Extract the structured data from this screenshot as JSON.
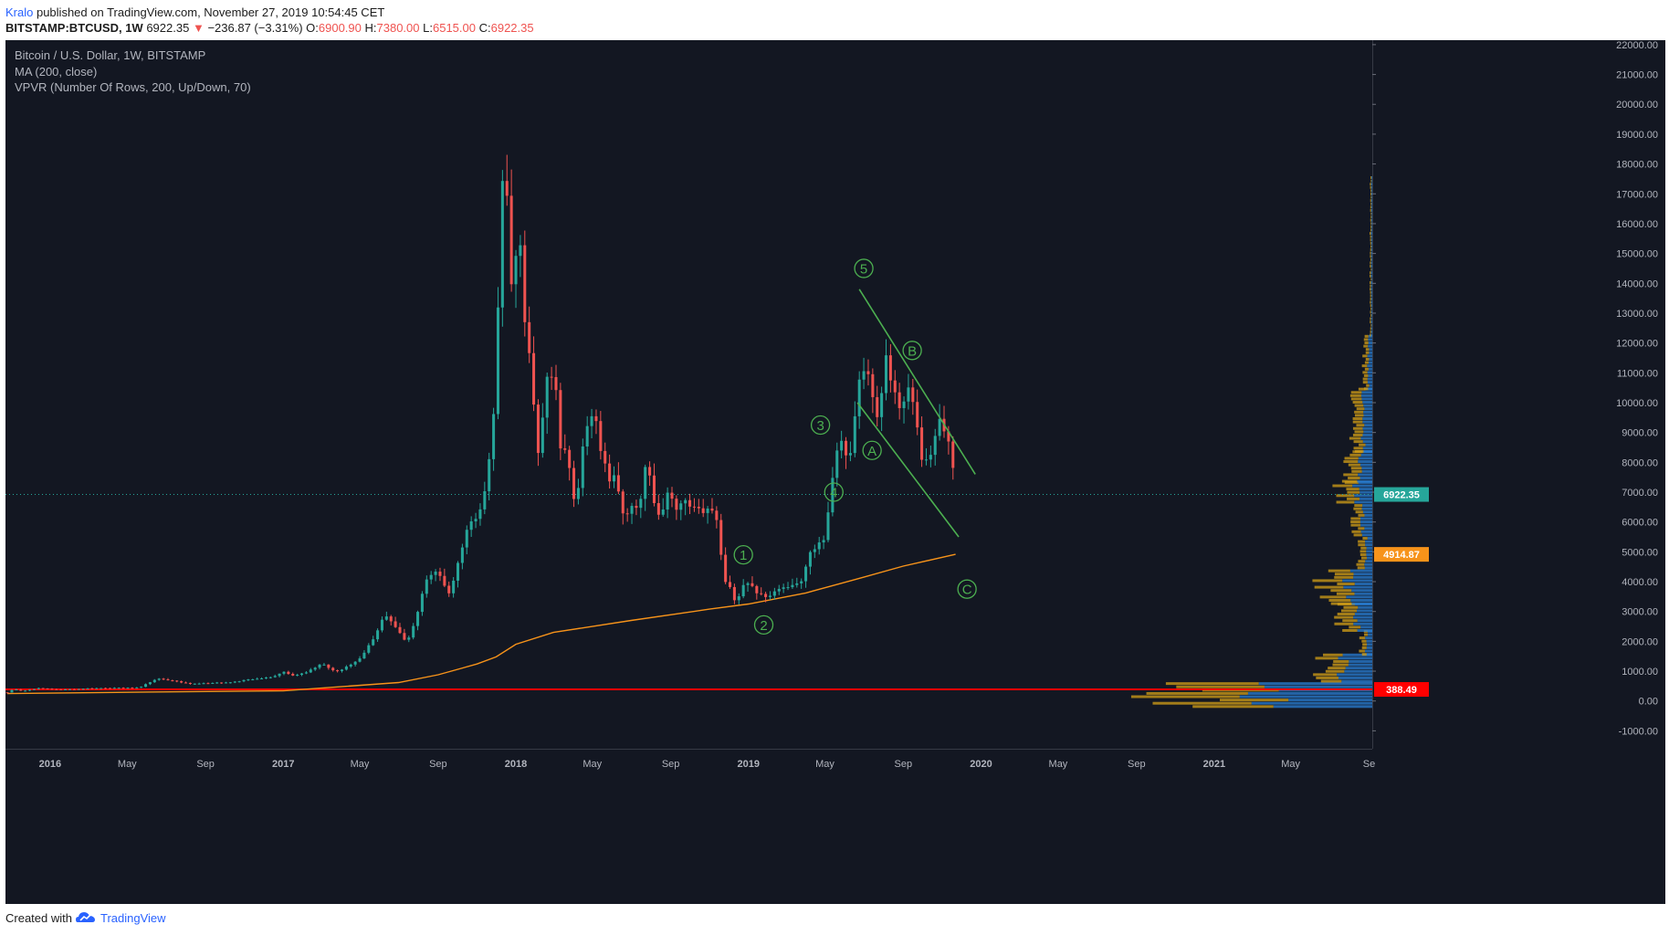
{
  "header": {
    "author": "Kralo",
    "published": " published on TradingView.com, November 27, 2019 10:54:45 CET",
    "symbol": "BITSTAMP:BTCUSD, 1W",
    "last": "6922.35",
    "change_arrow": "▼",
    "change": "−236.87 (−3.31%)",
    "o_label": "O:",
    "o": "6900.90",
    "h_label": "H:",
    "h": "7380.00",
    "l_label": "L:",
    "l": "6515.00",
    "c_label": "C:",
    "c": "6922.35"
  },
  "legend": {
    "title": "Bitcoin / U.S. Dollar, 1W, BITSTAMP",
    "ma": "MA (200, close)",
    "vpvr": "VPVR (Number Of Rows, 200, Up/Down, 70)"
  },
  "footer": {
    "created_with": "Created with",
    "brand": "TradingView"
  },
  "colors": {
    "background": "#131722",
    "up": "#26a69a",
    "down": "#ef5350",
    "ma": "#f7931a",
    "trend": "#4caf50",
    "support_line": "#ff0000",
    "vol_up": "#2a7fd4",
    "vol_down": "#d4a017",
    "axis_text": "#b2b5be"
  },
  "chart_data": {
    "type": "candlestick",
    "title": "Bitcoin / U.S. Dollar, 1W, BITSTAMP",
    "yaxis_ticks": [
      "-1000.00",
      "0.00",
      "1000.00",
      "2000.00",
      "3000.00",
      "4000.00",
      "5000.00",
      "6000.00",
      "7000.00",
      "8000.00",
      "9000.00",
      "10000.00",
      "11000.00",
      "12000.00",
      "13000.00",
      "14000.00",
      "15000.00",
      "16000.00",
      "17000.00",
      "18000.00",
      "19000.00",
      "20000.00",
      "21000.00",
      "22000.00"
    ],
    "xaxis_ticks": [
      {
        "t": "2016-01-01",
        "label": "2016"
      },
      {
        "t": "2016-05-01",
        "label": "May"
      },
      {
        "t": "2016-09-01",
        "label": "Sep"
      },
      {
        "t": "2017-01-01",
        "label": "2017"
      },
      {
        "t": "2017-05-01",
        "label": "May"
      },
      {
        "t": "2017-09-01",
        "label": "Sep"
      },
      {
        "t": "2018-01-01",
        "label": "2018"
      },
      {
        "t": "2018-05-01",
        "label": "May"
      },
      {
        "t": "2018-09-01",
        "label": "Sep"
      },
      {
        "t": "2019-01-01",
        "label": "2019"
      },
      {
        "t": "2019-05-01",
        "label": "May"
      },
      {
        "t": "2019-09-01",
        "label": "Sep"
      },
      {
        "t": "2020-01-01",
        "label": "2020"
      },
      {
        "t": "2020-05-01",
        "label": "May"
      },
      {
        "t": "2020-09-01",
        "label": "Sep"
      },
      {
        "t": "2021-01-01",
        "label": "2021"
      },
      {
        "t": "2021-05-01",
        "label": "May"
      },
      {
        "t": "2021-09-01",
        "label": "Se"
      }
    ],
    "ylim": [
      -1600,
      22150
    ],
    "xlim": [
      "2015-10-23",
      "2021-09-06"
    ],
    "price_labels": [
      {
        "name": "last",
        "value": 6922.35,
        "text": "6922.35",
        "color": "#26a69a"
      },
      {
        "name": "ma",
        "value": 4914.87,
        "text": "4914.87",
        "color": "#f7931a"
      },
      {
        "name": "support",
        "value": 388.49,
        "text": "388.49",
        "color": "#ff0000"
      }
    ],
    "last_price": 6922.35,
    "support_level": 388.49,
    "price_path": [
      [
        "2015-10-26",
        290
      ],
      [
        "2015-11-05",
        400
      ],
      [
        "2015-11-20",
        330
      ],
      [
        "2015-12-15",
        440
      ],
      [
        "2016-01-15",
        380
      ],
      [
        "2016-03-01",
        420
      ],
      [
        "2016-05-20",
        450
      ],
      [
        "2016-06-17",
        750
      ],
      [
        "2016-07-15",
        670
      ],
      [
        "2016-08-05",
        580
      ],
      [
        "2016-09-15",
        610
      ],
      [
        "2016-10-15",
        640
      ],
      [
        "2016-11-15",
        740
      ],
      [
        "2016-12-15",
        790
      ],
      [
        "2017-01-05",
        1000
      ],
      [
        "2017-01-12",
        820
      ],
      [
        "2017-02-10",
        1000
      ],
      [
        "2017-03-03",
        1270
      ],
      [
        "2017-03-24",
        960
      ],
      [
        "2017-04-14",
        1180
      ],
      [
        "2017-04-28",
        1350
      ],
      [
        "2017-05-12",
        1750
      ],
      [
        "2017-05-26",
        2200
      ],
      [
        "2017-06-09",
        2900
      ],
      [
        "2017-06-23",
        2550
      ],
      [
        "2017-07-14",
        1950
      ],
      [
        "2017-07-28",
        2750
      ],
      [
        "2017-08-11",
        4000
      ],
      [
        "2017-08-25",
        4350
      ],
      [
        "2017-09-08",
        4200
      ],
      [
        "2017-09-15",
        3500
      ],
      [
        "2017-09-29",
        4300
      ],
      [
        "2017-10-13",
        5600
      ],
      [
        "2017-10-27",
        6100
      ],
      [
        "2017-11-10",
        6400
      ],
      [
        "2017-11-17",
        7800
      ],
      [
        "2017-11-24",
        8200
      ],
      [
        "2017-12-01",
        11200
      ],
      [
        "2017-12-08",
        16200
      ],
      [
        "2017-12-15",
        18900
      ],
      [
        "2017-12-22",
        14000
      ],
      [
        "2017-12-29",
        13900
      ],
      [
        "2018-01-05",
        16200
      ],
      [
        "2018-01-12",
        13500
      ],
      [
        "2018-01-19",
        11600
      ],
      [
        "2018-01-26",
        11300
      ],
      [
        "2018-02-02",
        8200
      ],
      [
        "2018-02-09",
        8500
      ],
      [
        "2018-02-16",
        11100
      ],
      [
        "2018-02-23",
        10300
      ],
      [
        "2018-03-02",
        11400
      ],
      [
        "2018-03-09",
        8900
      ],
      [
        "2018-03-16",
        8200
      ],
      [
        "2018-03-23",
        8500
      ],
      [
        "2018-03-30",
        6900
      ],
      [
        "2018-04-06",
        6700
      ],
      [
        "2018-04-13",
        8000
      ],
      [
        "2018-04-20",
        8900
      ],
      [
        "2018-04-27",
        9300
      ],
      [
        "2018-05-04",
        9700
      ],
      [
        "2018-05-11",
        8700
      ],
      [
        "2018-05-18",
        8200
      ],
      [
        "2018-05-25",
        7400
      ],
      [
        "2018-06-01",
        7600
      ],
      [
        "2018-06-08",
        7500
      ],
      [
        "2018-06-15",
        6500
      ],
      [
        "2018-06-22",
        6100
      ],
      [
        "2018-06-29",
        6400
      ],
      [
        "2018-07-06",
        6700
      ],
      [
        "2018-07-13",
        6300
      ],
      [
        "2018-07-20",
        7400
      ],
      [
        "2018-07-27",
        8200
      ],
      [
        "2018-08-03",
        7000
      ],
      [
        "2018-08-10",
        6300
      ],
      [
        "2018-08-17",
        6400
      ],
      [
        "2018-08-24",
        6700
      ],
      [
        "2018-08-31",
        7200
      ],
      [
        "2018-09-07",
        6400
      ],
      [
        "2018-09-14",
        6500
      ],
      [
        "2018-09-21",
        6700
      ],
      [
        "2018-09-28",
        6600
      ],
      [
        "2018-10-05",
        6600
      ],
      [
        "2018-10-12",
        6450
      ],
      [
        "2018-10-19",
        6400
      ],
      [
        "2018-10-26",
        6300
      ],
      [
        "2018-11-02",
        6400
      ],
      [
        "2018-11-09",
        6300
      ],
      [
        "2018-11-16",
        5600
      ],
      [
        "2018-11-23",
        4000
      ],
      [
        "2018-11-30",
        4000
      ],
      [
        "2018-12-07",
        3600
      ],
      [
        "2018-12-14",
        3200
      ],
      [
        "2018-12-21",
        4000
      ],
      [
        "2018-12-28",
        3800
      ],
      [
        "2019-01-04",
        4000
      ],
      [
        "2019-01-11",
        3600
      ],
      [
        "2019-01-18",
        3550
      ],
      [
        "2019-01-25",
        3500
      ],
      [
        "2019-02-01",
        3450
      ],
      [
        "2019-02-08",
        3600
      ],
      [
        "2019-02-15",
        3700
      ],
      [
        "2019-02-22",
        3800
      ],
      [
        "2019-03-01",
        3850
      ],
      [
        "2019-03-08",
        3900
      ],
      [
        "2019-03-15",
        3950
      ],
      [
        "2019-03-22",
        4000
      ],
      [
        "2019-03-29",
        4100
      ],
      [
        "2019-04-05",
        5000
      ],
      [
        "2019-04-12",
        5100
      ],
      [
        "2019-04-19",
        5200
      ],
      [
        "2019-04-26",
        5300
      ],
      [
        "2019-05-03",
        5700
      ],
      [
        "2019-05-10",
        7200
      ],
      [
        "2019-05-17",
        8000
      ],
      [
        "2019-05-24",
        8700
      ],
      [
        "2019-05-31",
        8500
      ],
      [
        "2019-06-07",
        7700
      ],
      [
        "2019-06-14",
        8900
      ],
      [
        "2019-06-21",
        10700
      ],
      [
        "2019-06-28",
        11000
      ],
      [
        "2019-07-05",
        11500
      ],
      [
        "2019-07-12",
        10200
      ],
      [
        "2019-07-19",
        9800
      ],
      [
        "2019-07-26",
        9500
      ],
      [
        "2019-08-02",
        11500
      ],
      [
        "2019-08-09",
        11300
      ],
      [
        "2019-08-16",
        10300
      ],
      [
        "2019-08-23",
        10100
      ],
      [
        "2019-08-30",
        9600
      ],
      [
        "2019-09-06",
        10400
      ],
      [
        "2019-09-13",
        10300
      ],
      [
        "2019-09-20",
        9900
      ],
      [
        "2019-09-27",
        8000
      ],
      [
        "2019-10-04",
        7900
      ],
      [
        "2019-10-11",
        8300
      ],
      [
        "2019-10-18",
        8200
      ],
      [
        "2019-10-25",
        9600
      ],
      [
        "2019-11-01",
        9300
      ],
      [
        "2019-11-08",
        8800
      ],
      [
        "2019-11-15",
        8500
      ],
      [
        "2019-11-22",
        6922.35
      ]
    ],
    "ma200_path": [
      [
        "2015-10-26",
        250
      ],
      [
        "2016-06-01",
        300
      ],
      [
        "2017-01-01",
        340
      ],
      [
        "2017-07-01",
        620
      ],
      [
        "2017-09-01",
        880
      ],
      [
        "2017-11-01",
        1240
      ],
      [
        "2017-12-01",
        1480
      ],
      [
        "2018-01-01",
        1900
      ],
      [
        "2018-03-01",
        2300
      ],
      [
        "2018-07-01",
        2700
      ],
      [
        "2018-11-01",
        3080
      ],
      [
        "2019-01-01",
        3250
      ],
      [
        "2019-04-01",
        3620
      ],
      [
        "2019-07-01",
        4150
      ],
      [
        "2019-09-01",
        4520
      ],
      [
        "2019-11-22",
        4914.87
      ]
    ],
    "trend_lines": [
      {
        "name": "upper-channel",
        "points": [
          [
            "2019-06-24",
            13800
          ],
          [
            "2019-12-23",
            7600
          ]
        ]
      },
      {
        "name": "lower-channel",
        "points": [
          [
            "2019-06-21",
            10000
          ],
          [
            "2019-11-27",
            5500
          ]
        ]
      }
    ],
    "wave_labels": [
      {
        "text": "1",
        "t": "2018-12-24",
        "v": 4900
      },
      {
        "text": "2",
        "t": "2019-01-25",
        "v": 2550
      },
      {
        "text": "3",
        "t": "2019-04-24",
        "v": 9250
      },
      {
        "text": "4",
        "t": "2019-05-15",
        "v": 7000
      },
      {
        "text": "5",
        "t": "2019-07-01",
        "v": 14500
      },
      {
        "text": "A",
        "t": "2019-07-14",
        "v": 8400
      },
      {
        "text": "B",
        "t": "2019-09-15",
        "v": 11750
      },
      {
        "text": "C",
        "t": "2019-12-10",
        "v": 3750
      }
    ],
    "volume_profile": {
      "row_size": 110,
      "rows": [
        {
          "from": -250,
          "to": 600,
          "up": 0.55,
          "down": 0.45,
          "width": 1.0
        },
        {
          "from": 600,
          "to": 1500,
          "up": 0.6,
          "down": 0.4,
          "width": 0.22
        },
        {
          "from": 1500,
          "to": 2300,
          "up": 0.55,
          "down": 0.45,
          "width": 0.05
        },
        {
          "from": 2300,
          "to": 3200,
          "up": 0.5,
          "down": 0.5,
          "width": 0.14
        },
        {
          "from": 3200,
          "to": 4400,
          "up": 0.5,
          "down": 0.5,
          "width": 0.22
        },
        {
          "from": 4400,
          "to": 5500,
          "up": 0.5,
          "down": 0.5,
          "width": 0.06
        },
        {
          "from": 5500,
          "to": 6600,
          "up": 0.55,
          "down": 0.45,
          "width": 0.08
        },
        {
          "from": 6600,
          "to": 7300,
          "up": 0.5,
          "down": 0.5,
          "width": 0.16
        },
        {
          "from": 7300,
          "to": 8300,
          "up": 0.5,
          "down": 0.5,
          "width": 0.12
        },
        {
          "from": 8300,
          "to": 10400,
          "up": 0.5,
          "down": 0.5,
          "width": 0.09
        },
        {
          "from": 10400,
          "to": 12200,
          "up": 0.5,
          "down": 0.5,
          "width": 0.04
        },
        {
          "from": 12200,
          "to": 17500,
          "up": 0.5,
          "down": 0.5,
          "width": 0.01
        }
      ]
    }
  }
}
